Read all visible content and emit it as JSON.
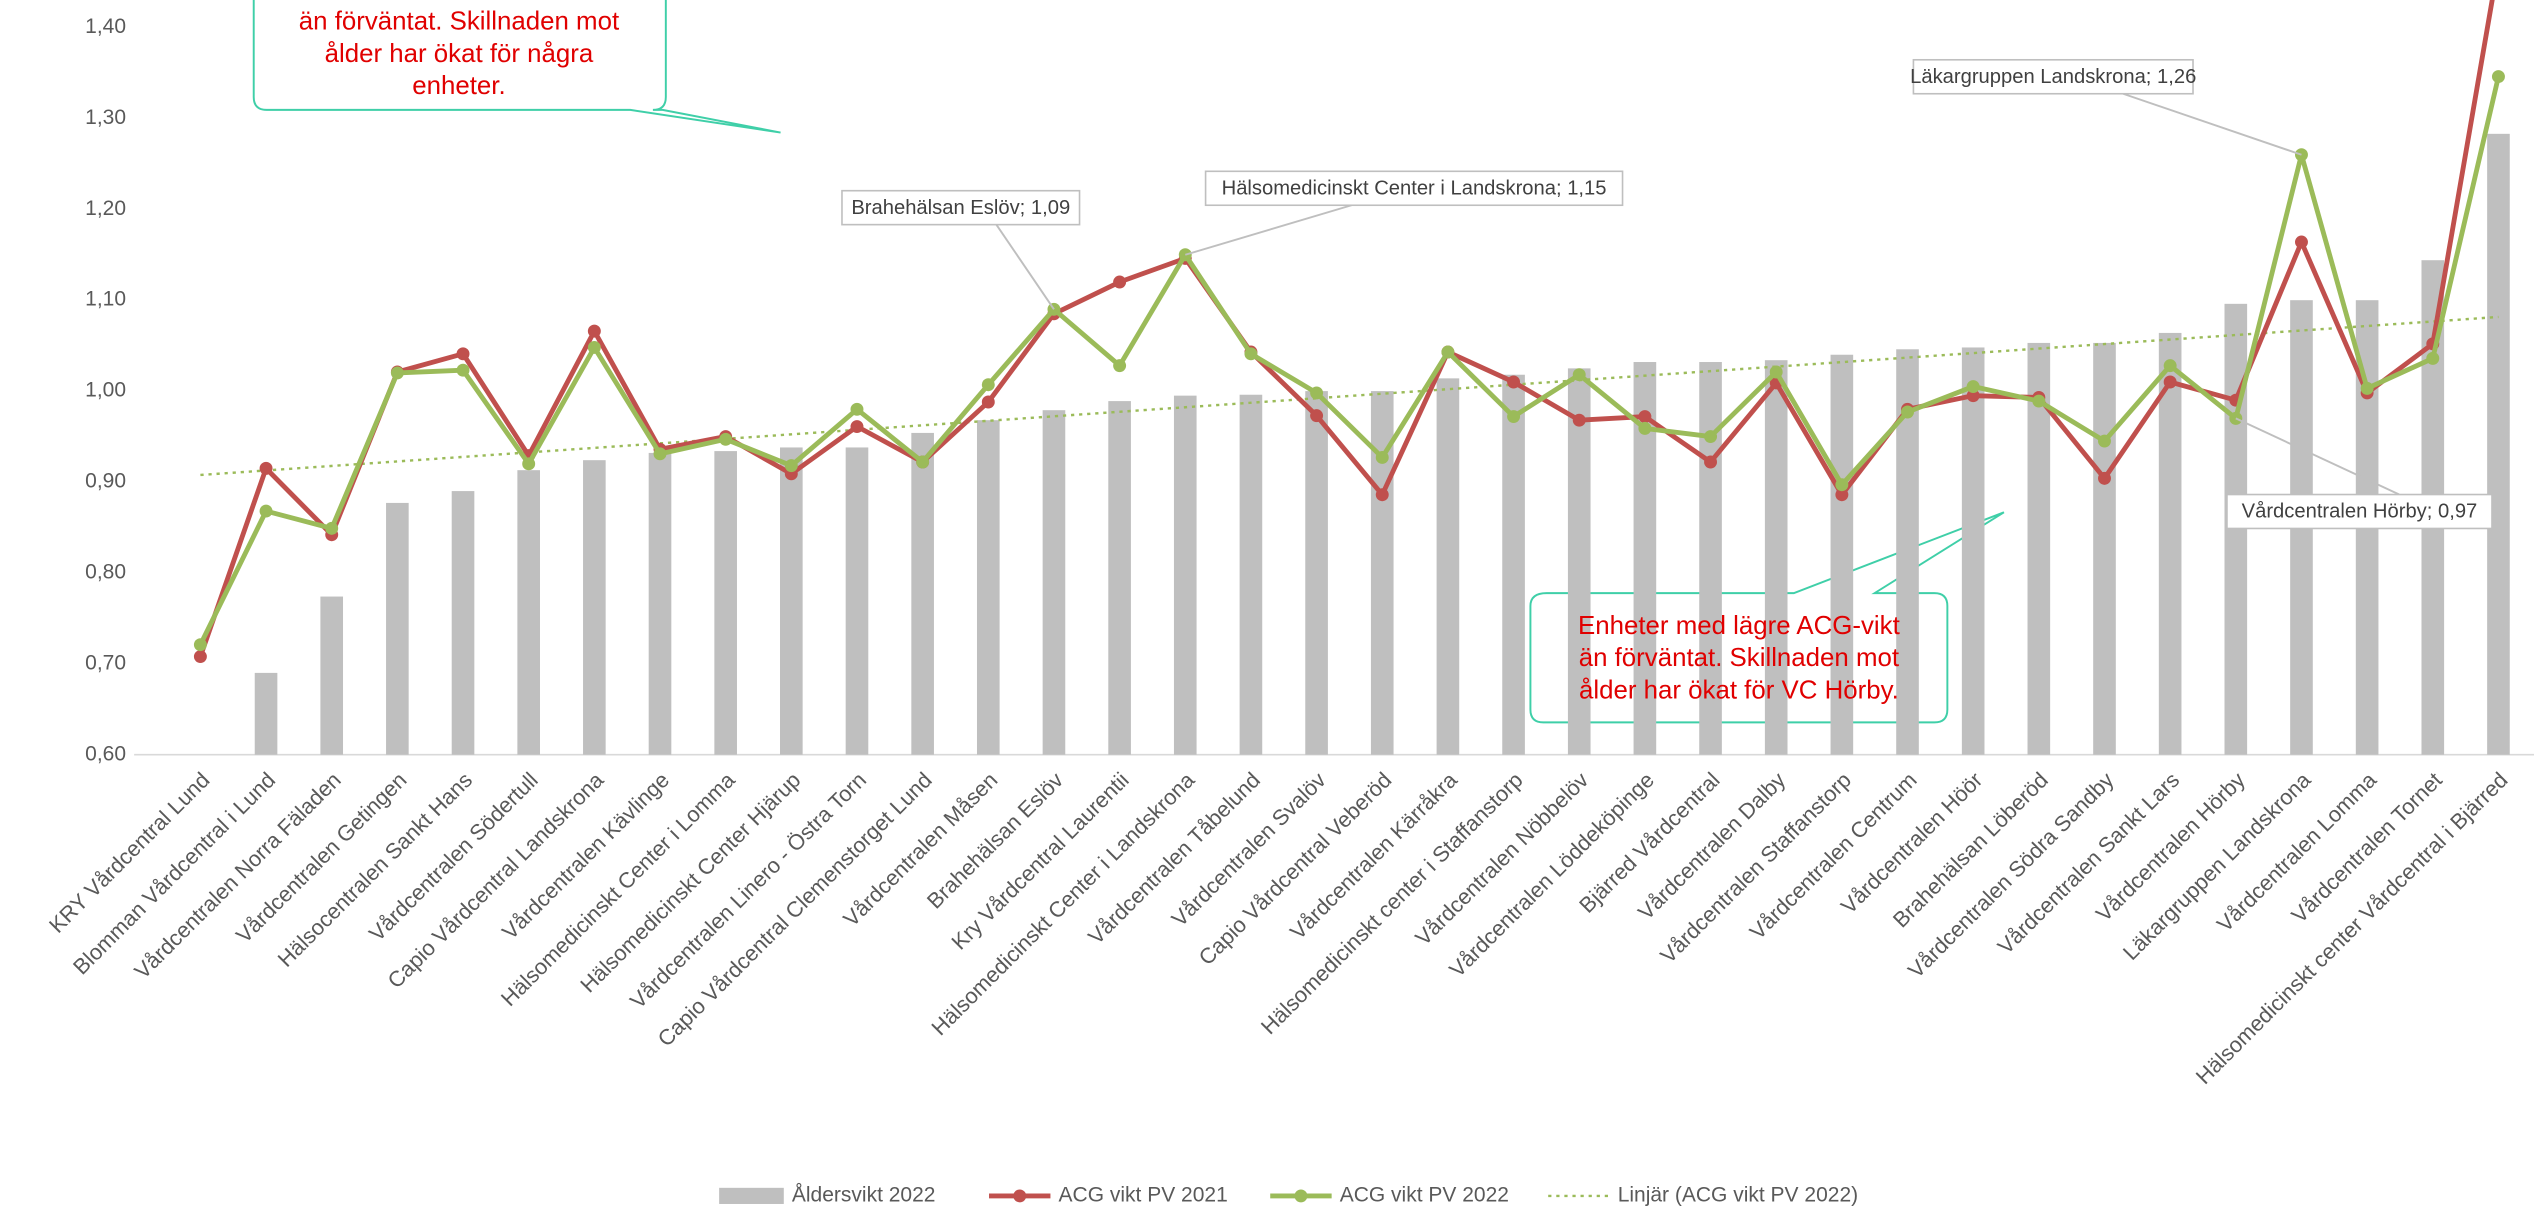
{
  "chart_data": {
    "type": "combo",
    "categories": [
      "KRY Vårdcentral Lund",
      "Blomman Vårdcentral i Lund",
      "Vårdcentralen Norra Fäladen",
      "Vårdcentralen Getingen",
      "Hälsocentralen Sankt Hans",
      "Vårdcentralen Södertull",
      "Capio Vårdcentral Landskrona",
      "Vårdcentralen Kävlinge",
      "Hälsomedicinskt Center i Lomma",
      "Hälsomedicinskt Center Hjärup",
      "Vårdcentralen Linero - Östra Torn",
      "Capio Vårdcentral Clemenstorget Lund",
      "Vårdcentralen Måsen",
      "Brahehälsan Eslöv",
      "Kry Vårdcentral Laurentii",
      "Hälsomedicinskt Center i Landskrona",
      "Vårdcentralen Tåbelund",
      "Vårdcentralen Svalöv",
      "Capio Vårdcentral Veberöd",
      "Vårdcentralen Kärråkra",
      "Hälsomedicinskt center i Staffanstorp",
      "Vårdcentralen Nöbbelöv",
      "Vårdcentralen Löddeköpinge",
      "Bjärred Vårdcentral",
      "Vårdcentralen Dalby",
      "Vårdcentralen Staffanstorp",
      "Vårdcentralen Centrum",
      "Vårdcentralen Höör",
      "Brahehälsan Löberöd",
      "Vårdcentralen Södra Sandby",
      "Vårdcentralen Sankt Lars",
      "Vårdcentralen Hörby",
      "Läkargruppen Landskrona",
      "Vårdcentralen Lomma",
      "Vårdcentralen Tornet",
      "Hälsomedicinskt center Vårdcentral i Bjärred"
    ],
    "series": [
      {
        "name": "Åldersvikt 2022",
        "type": "bar",
        "color": "#bfbfbf",
        "values": [
          null,
          0.69,
          0.774,
          0.877,
          0.89,
          0.913,
          0.924,
          0.932,
          0.934,
          0.938,
          0.938,
          0.954,
          0.968,
          0.979,
          0.989,
          0.995,
          0.996,
          1.0,
          1.0,
          1.014,
          1.018,
          1.025,
          1.032,
          1.032,
          1.034,
          1.04,
          1.046,
          1.048,
          1.053,
          1.053,
          1.064,
          1.096,
          1.1,
          1.1,
          1.144,
          1.283
        ]
      },
      {
        "name": "ACG vikt PV 2021",
        "type": "line",
        "color": "#c0504d",
        "values": [
          0.708,
          0.915,
          0.842,
          1.021,
          1.041,
          0.929,
          1.066,
          0.936,
          0.95,
          0.909,
          0.961,
          0.922,
          0.988,
          1.085,
          1.12,
          1.146,
          1.043,
          0.973,
          0.886,
          1.043,
          1.01,
          0.968,
          0.972,
          0.922,
          1.009,
          0.886,
          0.98,
          0.995,
          0.993,
          0.904,
          1.01,
          0.99,
          1.164,
          0.998,
          1.052,
          1.47
        ]
      },
      {
        "name": "ACG vikt PV 2022",
        "type": "line",
        "color": "#9bbb59",
        "values": [
          0.721,
          0.868,
          0.849,
          1.02,
          1.023,
          0.92,
          1.048,
          0.931,
          0.947,
          0.918,
          0.98,
          0.922,
          1.007,
          1.09,
          1.028,
          1.15,
          1.041,
          0.998,
          0.927,
          1.043,
          0.972,
          1.018,
          0.959,
          0.95,
          1.021,
          0.897,
          0.977,
          1.005,
          0.989,
          0.945,
          1.028,
          0.97,
          1.26,
          1.003,
          1.036,
          1.346
        ],
        "value_labels": [
          null,
          null,
          null,
          null,
          null,
          null,
          null,
          null,
          null,
          null,
          null,
          null,
          null,
          "Brahehälsan Eslöv; 1,09",
          null,
          "Hälsomedicinskt Center i Landskrona; 1,15",
          null,
          null,
          null,
          null,
          null,
          null,
          null,
          null,
          null,
          null,
          null,
          null,
          null,
          null,
          null,
          "Vårdcentralen Hörby; 0,97",
          "Läkargruppen Landskrona; 1,26",
          null,
          null,
          null
        ]
      }
    ],
    "trendline": {
      "name": "Linjär (ACG vikt PV 2022)",
      "color": "#9bbb59"
    },
    "ylim": [
      0.6,
      1.4
    ],
    "yticks": [
      {
        "value": 0.6,
        "label": "0,60"
      },
      {
        "value": 0.7,
        "label": "0,70"
      },
      {
        "value": 0.8,
        "label": "0,80"
      },
      {
        "value": 0.9,
        "label": "0,90"
      },
      {
        "value": 1.0,
        "label": "1,00"
      },
      {
        "value": 1.1,
        "label": "1,10"
      },
      {
        "value": 1.2,
        "label": "1,20"
      },
      {
        "value": 1.3,
        "label": "1,30"
      },
      {
        "value": 1.4,
        "label": "1,40"
      }
    ],
    "grid": false,
    "legend": "bottom",
    "annotations": [
      {
        "lines": [
          "än förväntat. Skillnaden mot",
          "ålder har ökat för några",
          "enheter."
        ]
      },
      {
        "lines": [
          "Enheter med lägre ACG-vikt",
          "än förväntat. Skillnaden mot",
          "ålder har ökat för VC Hörby."
        ]
      }
    ]
  }
}
